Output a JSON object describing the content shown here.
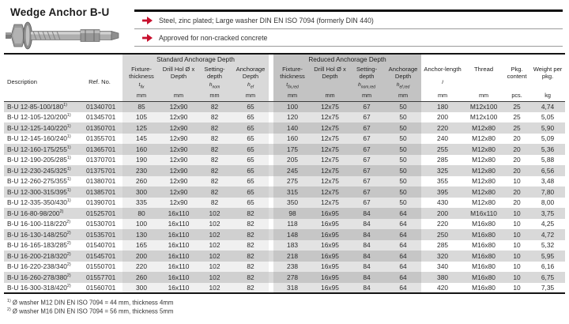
{
  "page": {
    "title": "Wedge Anchor B-U",
    "product_image": "wedge-anchor-photo",
    "features": [
      {
        "icon": "red-arrow-icon",
        "text": "Steel, zinc plated; Large washer DIN EN ISO 7094 (formerly DIN 440)"
      },
      {
        "icon": "red-arrow-icon",
        "text": "Approved for non-cracked concrete"
      }
    ],
    "footnotes": [
      {
        "sup": "1)",
        "text": "Ø washer M12 DIN EN ISO 7094 = 44 mm, thickness 4mm"
      },
      {
        "sup": "2)",
        "text": "Ø washer M16 DIN EN ISO 7094 = 56 mm, thickness 5mm"
      }
    ]
  },
  "colors": {
    "accent_red": "#c8102e",
    "row_gray": "#d9d9d9",
    "standard_group_bg": "#d9d9d9",
    "reduced_group_bg": "#c3c3c3",
    "border_black": "#141414"
  },
  "table": {
    "groups": {
      "standard": "Standard Anchorage Depth",
      "reduced": "Reduced Anchorage Depth"
    },
    "columns": [
      {
        "label": "Description",
        "sym": "",
        "sub": "",
        "unit": "",
        "group": "none"
      },
      {
        "label": "Ref. No.",
        "sym": "",
        "sub": "",
        "unit": "",
        "group": "none"
      },
      {
        "label": "Fixture-thickness",
        "sym": "t",
        "sub": "fix",
        "unit": "mm",
        "group": "std"
      },
      {
        "label": "Drill Hol Ø x Depth",
        "sym": "",
        "sub": "",
        "unit": "mm",
        "group": "std"
      },
      {
        "label": "Setting-depth",
        "sym": "h",
        "sub": "nom",
        "unit": "mm",
        "group": "std"
      },
      {
        "label": "Anchorage Depth",
        "sym": "h",
        "sub": "ef",
        "unit": "mm",
        "group": "std"
      },
      {
        "label": "Fixture-thickness",
        "sym": "t",
        "sub": "fix,red",
        "unit": "mm",
        "group": "red"
      },
      {
        "label": "Drill Hol Ø x Depth",
        "sym": "",
        "sub": "",
        "unit": "mm",
        "group": "red"
      },
      {
        "label": "Setting-depth",
        "sym": "h",
        "sub": "nom,red",
        "unit": "mm",
        "group": "red"
      },
      {
        "label": "Anchorage Depth",
        "sym": "h",
        "sub": "ef,red",
        "unit": "mm",
        "group": "red"
      },
      {
        "label": "Anchor-length",
        "sym": "l",
        "sub": "",
        "unit": "mm",
        "group": "plain"
      },
      {
        "label": "Thread",
        "sym": "",
        "sub": "",
        "unit": "mm",
        "group": "plain"
      },
      {
        "label": "Pkg. content",
        "sym": "",
        "sub": "",
        "unit": "pcs.",
        "group": "plain"
      },
      {
        "label": "Weight per pkg.",
        "sym": "",
        "sub": "",
        "unit": "kg",
        "group": "plain"
      }
    ],
    "rows": [
      {
        "desc": "B-U 12-85-100/180",
        "sup": "1)",
        "ref": "01340701",
        "values": [
          "85",
          "12x90",
          "82",
          "65",
          "100",
          "12x75",
          "67",
          "50",
          "180",
          "M12x100",
          "25",
          "4,74"
        ]
      },
      {
        "desc": "B-U 12-105-120/200",
        "sup": "1)",
        "ref": "01345701",
        "values": [
          "105",
          "12x90",
          "82",
          "65",
          "120",
          "12x75",
          "67",
          "50",
          "200",
          "M12x100",
          "25",
          "5,05"
        ]
      },
      {
        "desc": "B-U 12-125-140/220",
        "sup": "1)",
        "ref": "01350701",
        "values": [
          "125",
          "12x90",
          "82",
          "65",
          "140",
          "12x75",
          "67",
          "50",
          "220",
          "M12x80",
          "25",
          "5,90"
        ]
      },
      {
        "desc": "B-U 12-145-160/240",
        "sup": "1)",
        "ref": "01355701",
        "values": [
          "145",
          "12x90",
          "82",
          "65",
          "160",
          "12x75",
          "67",
          "50",
          "240",
          "M12x80",
          "20",
          "5,09"
        ]
      },
      {
        "desc": "B-U 12-160-175/255",
        "sup": "1)",
        "ref": "01365701",
        "values": [
          "160",
          "12x90",
          "82",
          "65",
          "175",
          "12x75",
          "67",
          "50",
          "255",
          "M12x80",
          "20",
          "5,36"
        ]
      },
      {
        "desc": "B-U 12-190-205/285",
        "sup": "1)",
        "ref": "01370701",
        "values": [
          "190",
          "12x90",
          "82",
          "65",
          "205",
          "12x75",
          "67",
          "50",
          "285",
          "M12x80",
          "20",
          "5,88"
        ]
      },
      {
        "desc": "B-U 12-230-245/325",
        "sup": "1)",
        "ref": "01375701",
        "values": [
          "230",
          "12x90",
          "82",
          "65",
          "245",
          "12x75",
          "67",
          "50",
          "325",
          "M12x80",
          "20",
          "6,56"
        ]
      },
      {
        "desc": "B-U 12-260-275/355",
        "sup": "1)",
        "ref": "01380701",
        "values": [
          "260",
          "12x90",
          "82",
          "65",
          "275",
          "12x75",
          "67",
          "50",
          "355",
          "M12x80",
          "10",
          "3,48"
        ]
      },
      {
        "desc": "B-U 12-300-315/395",
        "sup": "1)",
        "ref": "01385701",
        "values": [
          "300",
          "12x90",
          "82",
          "65",
          "315",
          "12x75",
          "67",
          "50",
          "395",
          "M12x80",
          "20",
          "7,80"
        ]
      },
      {
        "desc": "B-U 12-335-350/430",
        "sup": "1)",
        "ref": "01390701",
        "values": [
          "335",
          "12x90",
          "82",
          "65",
          "350",
          "12x75",
          "67",
          "50",
          "430",
          "M12x80",
          "20",
          "8,00"
        ]
      },
      {
        "desc": "B-U 16-80-98/200",
        "sup": "2)",
        "ref": "01525701",
        "values": [
          "80",
          "16x110",
          "102",
          "82",
          "98",
          "16x95",
          "84",
          "64",
          "200",
          "M16x110",
          "10",
          "3,75"
        ]
      },
      {
        "desc": "B-U 16-100-118/220",
        "sup": "2)",
        "ref": "01530701",
        "values": [
          "100",
          "16x110",
          "102",
          "82",
          "118",
          "16x95",
          "84",
          "64",
          "220",
          "M16x80",
          "10",
          "4,25"
        ]
      },
      {
        "desc": "B-U 16-130-148/250",
        "sup": "2)",
        "ref": "01535701",
        "values": [
          "130",
          "16x110",
          "102",
          "82",
          "148",
          "16x95",
          "84",
          "64",
          "250",
          "M16x80",
          "10",
          "4,72"
        ]
      },
      {
        "desc": "B-U 16-165-183/285",
        "sup": "2)",
        "ref": "01540701",
        "values": [
          "165",
          "16x110",
          "102",
          "82",
          "183",
          "16x95",
          "84",
          "64",
          "285",
          "M16x80",
          "10",
          "5,32"
        ]
      },
      {
        "desc": "B-U 16-200-218/320",
        "sup": "2)",
        "ref": "01545701",
        "values": [
          "200",
          "16x110",
          "102",
          "82",
          "218",
          "16x95",
          "84",
          "64",
          "320",
          "M16x80",
          "10",
          "5,95"
        ]
      },
      {
        "desc": "B-U 16-220-238/340",
        "sup": "2)",
        "ref": "01550701",
        "values": [
          "220",
          "16x110",
          "102",
          "82",
          "238",
          "16x95",
          "84",
          "64",
          "340",
          "M16x80",
          "10",
          "6,16"
        ]
      },
      {
        "desc": "B-U 16-260-278/380",
        "sup": "2)",
        "ref": "01557701",
        "values": [
          "260",
          "16x110",
          "102",
          "82",
          "278",
          "16x95",
          "84",
          "64",
          "380",
          "M16x80",
          "10",
          "6,75"
        ]
      },
      {
        "desc": "B-U 16-300-318/420",
        "sup": "2)",
        "ref": "01560701",
        "values": [
          "300",
          "16x110",
          "102",
          "82",
          "318",
          "16x95",
          "84",
          "64",
          "420",
          "M16x80",
          "10",
          "7,35"
        ]
      }
    ]
  }
}
